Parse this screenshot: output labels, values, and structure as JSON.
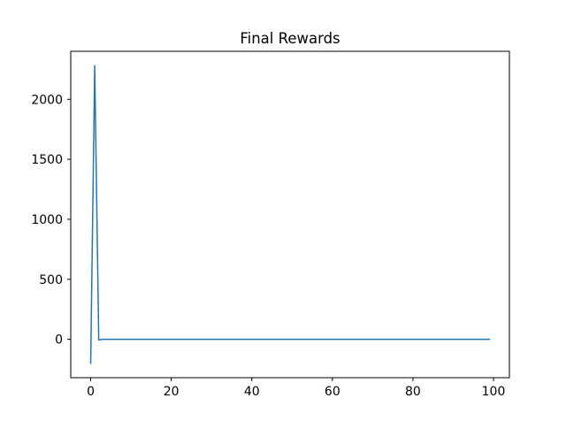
{
  "chart_data": {
    "type": "line",
    "title": "Final Rewards",
    "xlabel": "",
    "ylabel": "",
    "xlim": [
      -4.95,
      103.95
    ],
    "ylim": [
      -320,
      2400
    ],
    "xticks": [
      0,
      20,
      40,
      60,
      80,
      100
    ],
    "yticks": [
      0,
      500,
      1000,
      1500,
      2000
    ],
    "grid": false,
    "series": [
      {
        "color": "#1f77b4",
        "x": [
          0,
          1,
          2,
          3,
          4,
          5,
          6,
          7,
          8,
          9,
          10,
          11,
          12,
          13,
          14,
          15,
          16,
          17,
          18,
          19,
          20,
          21,
          22,
          23,
          24,
          25,
          26,
          27,
          28,
          29,
          30,
          31,
          32,
          33,
          34,
          35,
          36,
          37,
          38,
          39,
          40,
          41,
          42,
          43,
          44,
          45,
          46,
          47,
          48,
          49,
          50,
          51,
          52,
          53,
          54,
          55,
          56,
          57,
          58,
          59,
          60,
          61,
          62,
          63,
          64,
          65,
          66,
          67,
          68,
          69,
          70,
          71,
          72,
          73,
          74,
          75,
          76,
          77,
          78,
          79,
          80,
          81,
          82,
          83,
          84,
          85,
          86,
          87,
          88,
          89,
          90,
          91,
          92,
          93,
          94,
          95,
          96,
          97,
          98,
          99
        ],
        "values": [
          -200,
          2280,
          -5,
          0,
          0,
          0,
          0,
          0,
          0,
          0,
          0,
          0,
          0,
          0,
          0,
          0,
          0,
          0,
          0,
          0,
          0,
          0,
          0,
          0,
          0,
          0,
          0,
          0,
          0,
          0,
          0,
          0,
          0,
          0,
          0,
          0,
          0,
          0,
          0,
          0,
          0,
          0,
          0,
          0,
          0,
          0,
          0,
          0,
          0,
          0,
          0,
          0,
          0,
          0,
          0,
          0,
          0,
          0,
          0,
          0,
          0,
          0,
          0,
          0,
          0,
          0,
          0,
          0,
          0,
          0,
          0,
          0,
          0,
          0,
          0,
          0,
          0,
          0,
          0,
          0,
          0,
          0,
          0,
          0,
          0,
          0,
          0,
          0,
          0,
          0,
          0,
          0,
          0,
          0,
          0,
          0,
          0,
          0,
          0,
          0
        ]
      }
    ]
  }
}
